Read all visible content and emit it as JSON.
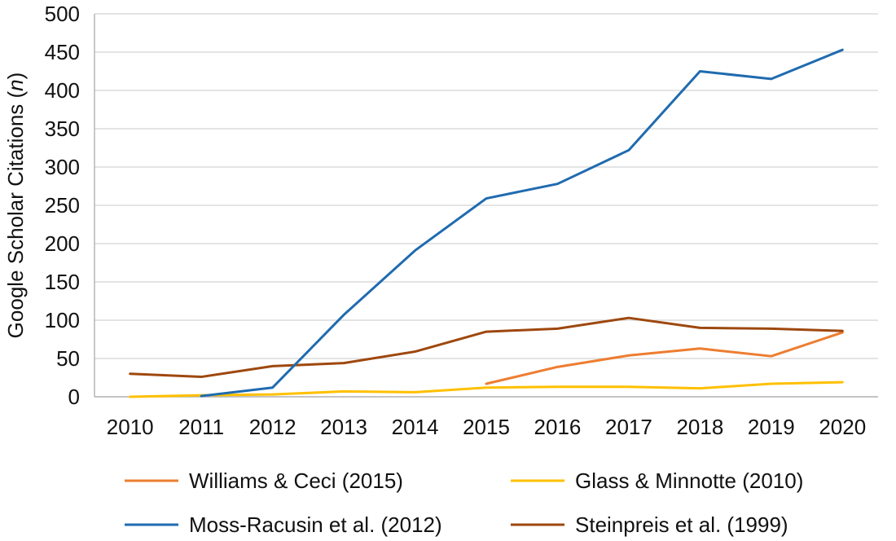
{
  "chart_data": {
    "type": "line",
    "title": "",
    "xlabel": "",
    "ylabel": "Google Scholar Citations",
    "ylabel_italic_part": "n",
    "categories": [
      "2010",
      "2011",
      "2012",
      "2013",
      "2014",
      "2015",
      "2016",
      "2017",
      "2018",
      "2019",
      "2020"
    ],
    "ylim": [
      0,
      500
    ],
    "yticks": [
      "0",
      "50",
      "100",
      "150",
      "200",
      "250",
      "300",
      "350",
      "400",
      "450",
      "500"
    ],
    "grid": "horizontal",
    "legend_position": "bottom",
    "series": [
      {
        "name": "Williams & Ceci (2015)",
        "color": "#ED7D31",
        "values": [
          null,
          null,
          null,
          null,
          null,
          17,
          39,
          54,
          63,
          53,
          84
        ]
      },
      {
        "name": "Glass & Minnotte (2010)",
        "color": "#FFC000",
        "values": [
          0,
          2,
          3,
          7,
          6,
          12,
          13,
          13,
          11,
          17,
          19
        ]
      },
      {
        "name": "Moss-Racusin et al. (2012)",
        "color": "#1F6BB0",
        "values": [
          null,
          1,
          12,
          107,
          191,
          259,
          278,
          322,
          425,
          415,
          453
        ]
      },
      {
        "name": "Steinpreis et al. (1999)",
        "color": "#9E480E",
        "values": [
          30,
          26,
          40,
          44,
          59,
          85,
          89,
          103,
          90,
          89,
          86
        ]
      }
    ]
  }
}
